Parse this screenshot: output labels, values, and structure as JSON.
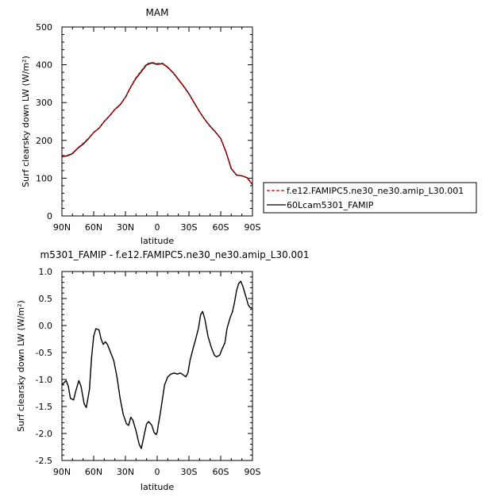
{
  "chart_data": [
    {
      "type": "line",
      "title": "MAM",
      "xlabel": "latitude",
      "ylabel": "Surf clearsky down LW (W/m²)",
      "xlim": [
        90,
        -90
      ],
      "ylim": [
        0,
        500
      ],
      "x_tick_values": [
        90,
        60,
        30,
        0,
        -30,
        -60,
        -90
      ],
      "x_tick_labels": [
        "90N",
        "60N",
        "30N",
        "0",
        "30S",
        "60S",
        "90S"
      ],
      "y_tick_values": [
        0,
        100,
        200,
        300,
        400,
        500
      ],
      "y_tick_labels": [
        "0",
        "100",
        "200",
        "300",
        "400",
        "500"
      ],
      "legend": {
        "placement": "right",
        "entries": [
          {
            "label": "f.e12.FAMIPC5.ne30_ne30.amip_L30.001",
            "color": "#cc0000",
            "dash": "dashed"
          },
          {
            "label": "60Lcam5301_FAMIP",
            "color": "#000000",
            "dash": "solid"
          }
        ]
      },
      "series": [
        {
          "name": "f.e12.FAMIPC5.ne30_ne30.amip_L30.001",
          "color": "#cc0000",
          "dash": "dashed",
          "x": [
            90,
            85,
            80,
            75,
            70,
            65,
            60,
            55,
            50,
            45,
            40,
            35,
            30,
            25,
            20,
            15,
            10,
            5,
            0,
            -5,
            -10,
            -15,
            -20,
            -25,
            -30,
            -35,
            -40,
            -45,
            -50,
            -55,
            -60,
            -65,
            -70,
            -75,
            -80,
            -85,
            -90
          ],
          "y": [
            158,
            160,
            166,
            180,
            192,
            205,
            221,
            232,
            250,
            265,
            282,
            295,
            314,
            342,
            366,
            384,
            402,
            406,
            403,
            404,
            394,
            380,
            362,
            344,
            324,
            300,
            276,
            255,
            238,
            223,
            205,
            170,
            126,
            108,
            106,
            101,
            83
          ]
        },
        {
          "name": "60Lcam5301_FAMIP",
          "color": "#000000",
          "dash": "solid",
          "x": [
            90,
            85,
            80,
            75,
            70,
            65,
            60,
            55,
            50,
            45,
            40,
            35,
            30,
            25,
            20,
            15,
            10,
            5,
            0,
            -5,
            -10,
            -15,
            -20,
            -25,
            -30,
            -35,
            -40,
            -45,
            -50,
            -55,
            -60,
            -65,
            -70,
            -75,
            -80,
            -85,
            -90
          ],
          "y": [
            157,
            159,
            165,
            179,
            190,
            204,
            221,
            232,
            250,
            265,
            282,
            294,
            314,
            341,
            364,
            382,
            400,
            405,
            401,
            403,
            393,
            379,
            361,
            343,
            323,
            299,
            276,
            255,
            237,
            222,
            205,
            169,
            125,
            108,
            106,
            101,
            83
          ]
        }
      ]
    },
    {
      "type": "line",
      "title": "m5301_FAMIP - f.e12.FAMIPC5.ne30_ne30.amip_L30.001",
      "xlabel": "latitude",
      "ylabel": "Surf clearsky down LW (W/m²)",
      "xlim": [
        90,
        -90
      ],
      "ylim": [
        -2.5,
        1.0
      ],
      "x_tick_values": [
        90,
        60,
        30,
        0,
        -30,
        -60,
        -90
      ],
      "x_tick_labels": [
        "90N",
        "60N",
        "30N",
        "0",
        "30S",
        "60S",
        "90S"
      ],
      "y_tick_values": [
        1.0,
        0.5,
        0.0,
        -0.5,
        -1.0,
        -1.5,
        -2.0,
        -2.5
      ],
      "y_tick_labels": [
        "1.0",
        "0.5",
        "0.0",
        "-0.5",
        "-1.0",
        "-1.5",
        "-2.0",
        "-2.5"
      ],
      "series": [
        {
          "color": "#000000",
          "dash": "solid",
          "x": [
            90,
            86,
            84,
            82,
            79,
            77,
            74,
            72,
            69,
            67,
            64,
            62,
            60,
            58,
            55,
            53,
            51,
            49,
            47,
            44,
            41,
            38,
            35,
            32,
            29,
            27,
            25,
            23,
            20,
            17,
            15,
            12,
            10,
            8,
            5,
            3,
            1,
            0,
            -1,
            -3,
            -5,
            -7,
            -10,
            -13,
            -16,
            -19,
            -22,
            -25,
            -27,
            -29,
            -31,
            -34,
            -36,
            -39,
            -41,
            -43,
            -45,
            -48,
            -51,
            -54,
            -56,
            -59,
            -61,
            -64,
            -66,
            -69,
            -71,
            -73,
            -75,
            -77,
            -79,
            -81,
            -84,
            -86,
            -88,
            -90
          ],
          "y": [
            -1.1,
            -1.02,
            -1.12,
            -1.35,
            -1.38,
            -1.22,
            -1.02,
            -1.12,
            -1.45,
            -1.52,
            -1.18,
            -0.6,
            -0.2,
            -0.06,
            -0.08,
            -0.25,
            -0.35,
            -0.3,
            -0.35,
            -0.5,
            -0.65,
            -0.95,
            -1.35,
            -1.65,
            -1.82,
            -1.85,
            -1.7,
            -1.75,
            -1.95,
            -2.2,
            -2.28,
            -2.0,
            -1.82,
            -1.78,
            -1.85,
            -1.98,
            -2.02,
            -1.98,
            -1.85,
            -1.62,
            -1.35,
            -1.1,
            -0.95,
            -0.9,
            -0.88,
            -0.9,
            -0.88,
            -0.92,
            -0.95,
            -0.88,
            -0.65,
            -0.42,
            -0.28,
            -0.05,
            0.2,
            0.26,
            0.12,
            -0.2,
            -0.4,
            -0.55,
            -0.58,
            -0.55,
            -0.45,
            -0.32,
            -0.05,
            0.15,
            0.25,
            0.42,
            0.65,
            0.78,
            0.82,
            0.72,
            0.52,
            0.38,
            0.33,
            0.32
          ]
        }
      ]
    }
  ]
}
